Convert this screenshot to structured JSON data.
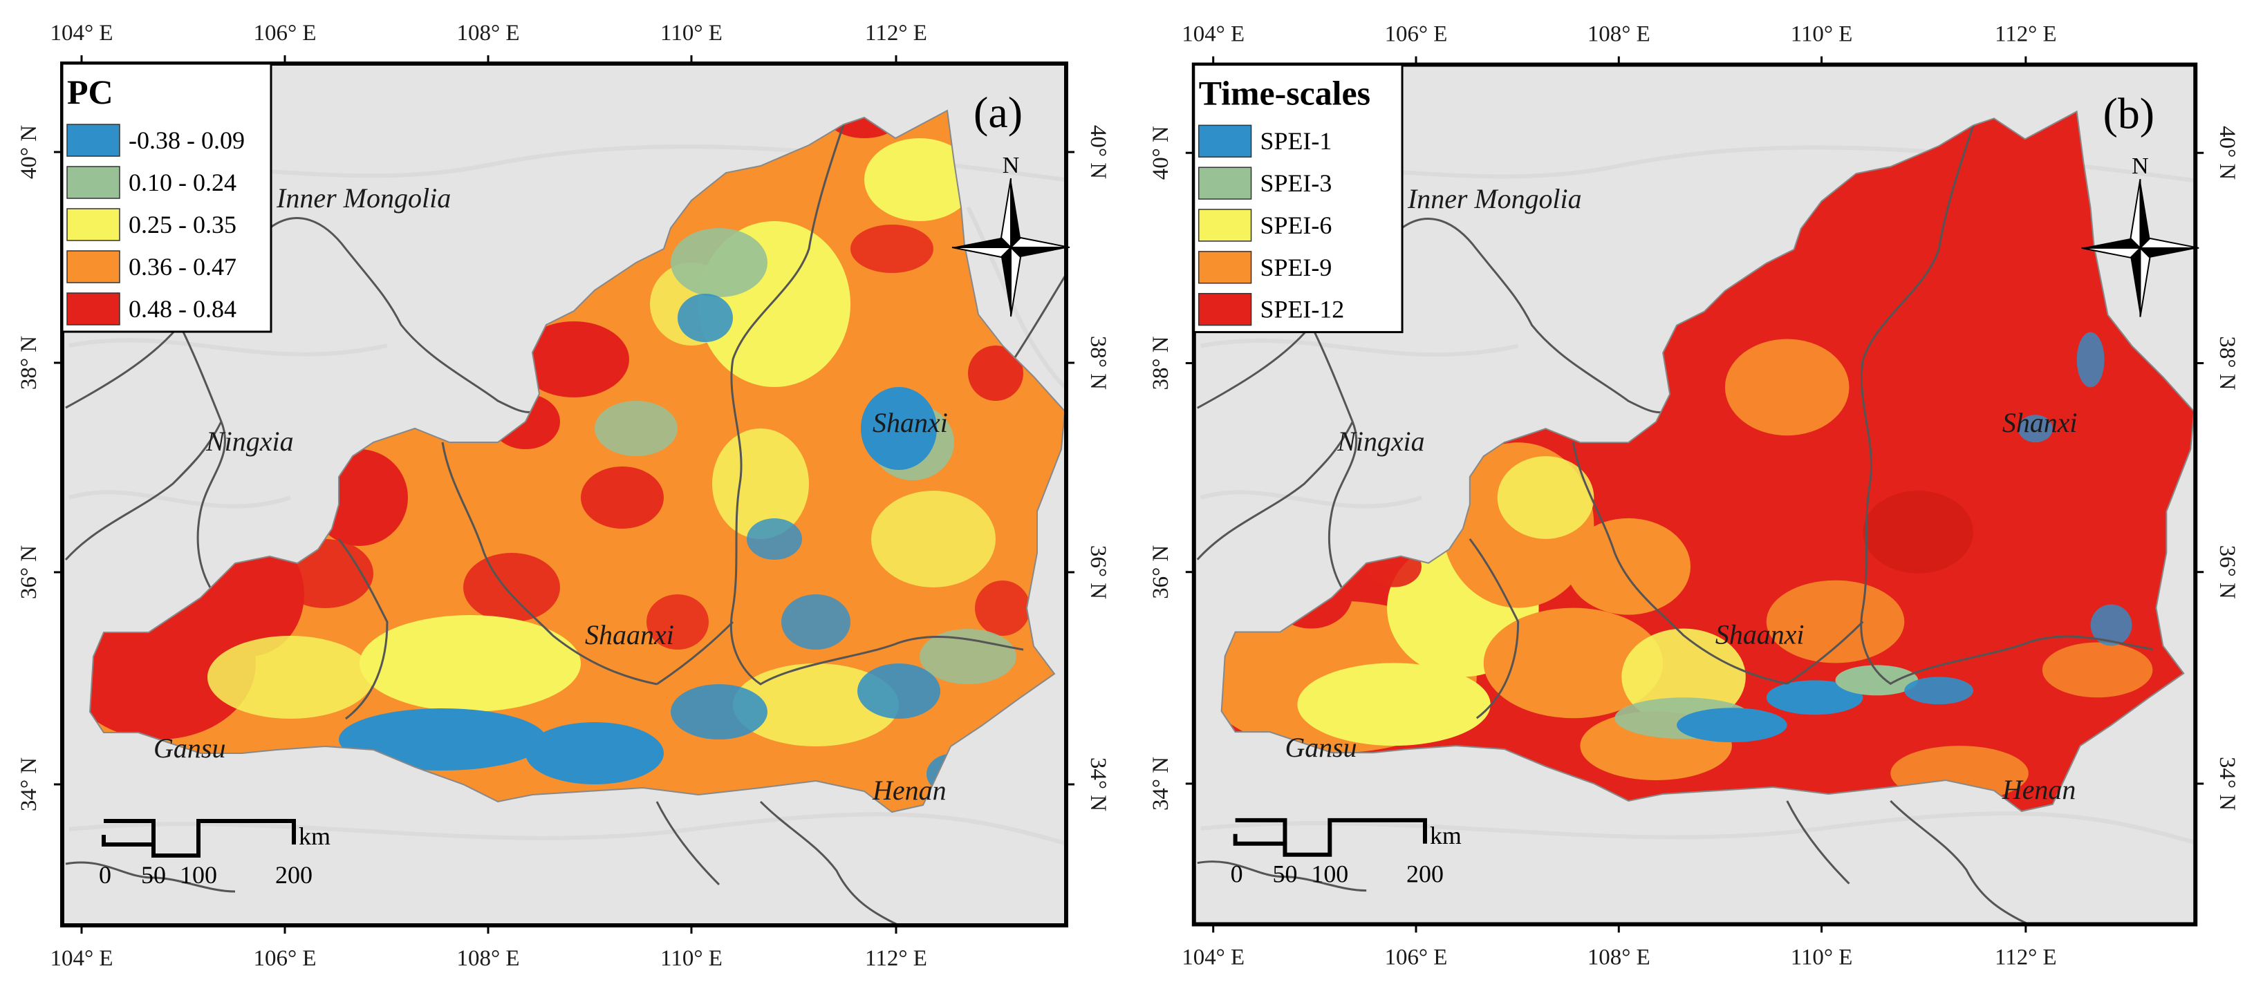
{
  "colors": {
    "class1": "#2f8fc9",
    "class2": "#98c196",
    "class3": "#f6f35c",
    "class4": "#f7902d",
    "class5": "#e3231b",
    "background": "#e4e4e4",
    "boundary": "#555555"
  },
  "x_ticks": [
    "104° E",
    "106° E",
    "108° E",
    "110° E",
    "112° E"
  ],
  "y_ticks": [
    "40° N",
    "38° N",
    "36° N",
    "34° N"
  ],
  "places": {
    "inner_mongolia": "Inner Mongolia",
    "ningxia": "Ningxia",
    "shanxi": "Shanxi",
    "shaanxi": "Shaanxi",
    "gansu": "Gansu",
    "henan": "Henan"
  },
  "north_label": "N",
  "scale_bar": {
    "unit": "km",
    "ticks": [
      "0",
      "50",
      "100",
      "200"
    ]
  },
  "panels": [
    {
      "label": "(a)",
      "legend_title": "PC",
      "legend_items": [
        "-0.38 - 0.09",
        "0.10 - 0.24",
        "0.25 - 0.35",
        "0.36 - 0.47",
        "0.48 - 0.84"
      ],
      "dominant_class": "mixed"
    },
    {
      "label": "(b)",
      "legend_title": "Time-scales",
      "legend_items": [
        "SPEI-1",
        "SPEI-3",
        "SPEI-6",
        "SPEI-9",
        "SPEI-12"
      ],
      "dominant_class": "SPEI-12"
    }
  ]
}
